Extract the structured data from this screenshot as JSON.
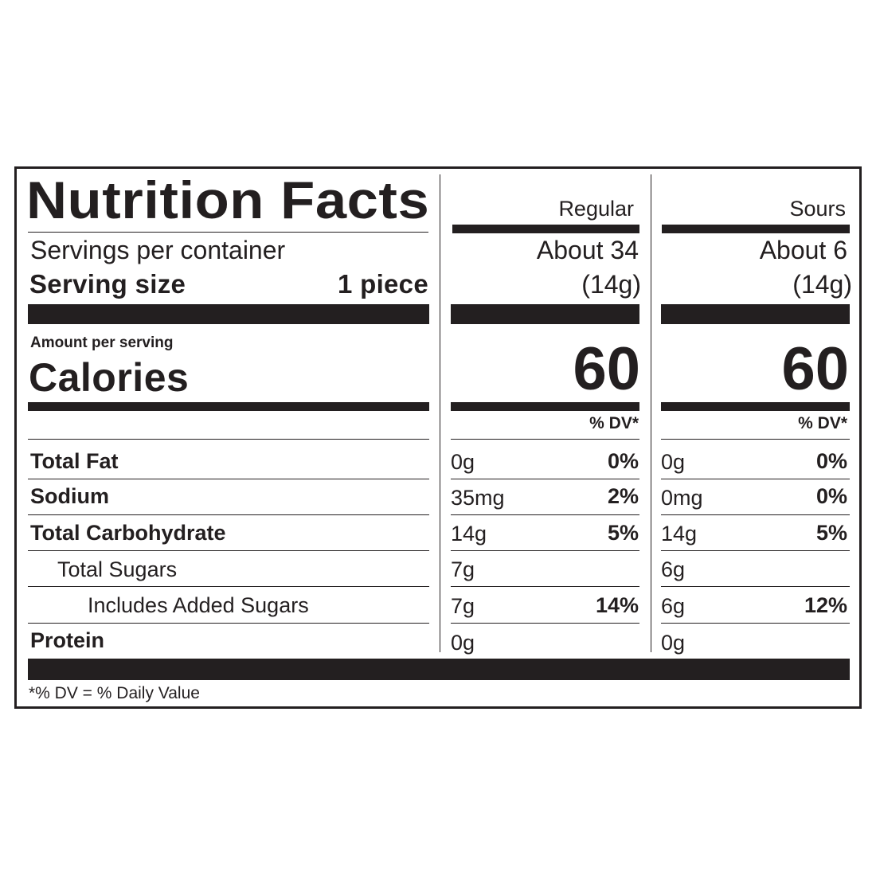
{
  "title": "Nutrition Facts",
  "columns": [
    {
      "name": "Regular",
      "servings": "About 34",
      "serving_weight": "(14g)",
      "calories": "60"
    },
    {
      "name": "Sours",
      "servings": "About 6",
      "serving_weight": "(14g)",
      "calories": "60"
    }
  ],
  "servings_label": "Servings per container",
  "serving_size_label": "Serving size",
  "serving_size_value": "1 piece",
  "amount_per_serving": "Amount per serving",
  "calories_label": "Calories",
  "dv_header": "% DV*",
  "nutrients": [
    {
      "label": "Total Fat",
      "regular_amount": "0g",
      "regular_dv": "0%",
      "sours_amount": "0g",
      "sours_dv": "0%"
    },
    {
      "label": "Sodium",
      "regular_amount": "35mg",
      "regular_dv": "2%",
      "sours_amount": "0mg",
      "sours_dv": "0%"
    },
    {
      "label": "Total Carbohydrate",
      "regular_amount": "14g",
      "regular_dv": "5%",
      "sours_amount": "14g",
      "sours_dv": "5%"
    },
    {
      "label": "Total Sugars",
      "regular_amount": "7g",
      "regular_dv": "",
      "sours_amount": "6g",
      "sours_dv": ""
    },
    {
      "label": "Includes Added Sugars",
      "regular_amount": "7g",
      "regular_dv": "14%",
      "sours_amount": "6g",
      "sours_dv": "12%"
    },
    {
      "label": "Protein",
      "regular_amount": "0g",
      "regular_dv": "",
      "sours_amount": "0g",
      "sours_dv": ""
    }
  ],
  "footnote": "*% DV = % Daily Value"
}
